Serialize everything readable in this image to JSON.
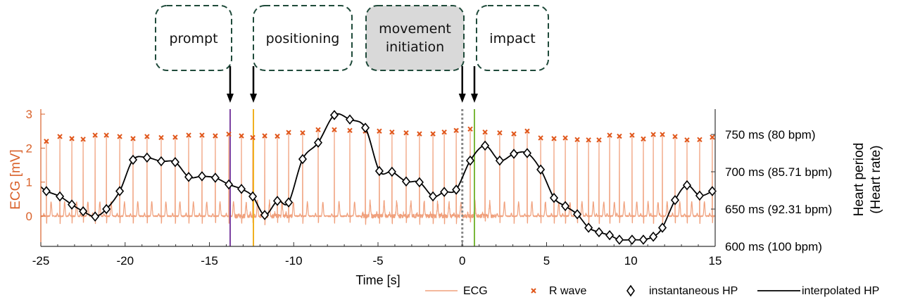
{
  "chart_data": {
    "type": "line",
    "xlabel": "Time [s]",
    "ylabel_left": "ECG [mV]",
    "ylabel_right": [
      "Heart period",
      "(Heart rate)"
    ],
    "xlim": [
      -25,
      15
    ],
    "ylim_left": [
      -0.9,
      3.2
    ],
    "ylim_right_ms": [
      600,
      784
    ],
    "x_ticks": [
      "-25",
      "-20",
      "-15",
      "-10",
      "-5",
      "0",
      "5",
      "10",
      "15"
    ],
    "x_tick_values": [
      -25,
      -20,
      -15,
      -10,
      -5,
      0,
      5,
      10,
      15
    ],
    "y_left_ticks": [
      "0",
      "1",
      "2",
      "3"
    ],
    "y_left_tick_values": [
      0,
      1,
      2,
      3
    ],
    "y_right_ticks": [
      "600 ms (100 bpm)",
      "650 ms (92.31 bpm)",
      "700 ms (85.71 bpm)",
      "750 ms (80 bpm)"
    ],
    "y_right_tick_values": [
      600,
      650,
      700,
      750
    ],
    "legend": [
      "ECG",
      "R wave",
      "instantaneous HP",
      "interpolated HP"
    ],
    "legend_position": "bottom-right",
    "colors": {
      "ecg": "#f0a07c",
      "ecg_dark": "#e0672e",
      "r_wave": "#e0561a",
      "axis_left": "#d9622b",
      "hp": "#000000",
      "prompt": "#7b3fa0",
      "positioning": "#f0b020",
      "movement": "#888888",
      "impact": "#7ab83a",
      "box_border": "#1f4a3a",
      "box_fill_active": "#d9d9d9"
    },
    "beat_times_s": [
      -24.67,
      -23.87,
      -23.16,
      -22.49,
      -21.78,
      -21.11,
      -20.32,
      -19.53,
      -18.7,
      -17.86,
      -17.03,
      -16.23,
      -15.44,
      -14.65,
      -13.85,
      -13.1,
      -12.43,
      -11.72,
      -10.97,
      -10.3,
      -9.47,
      -8.55,
      -7.59,
      -6.67,
      -5.75,
      -4.92,
      -4.17,
      -3.33,
      -2.54,
      -1.74,
      -1.07,
      -0.36,
      0.47,
      1.35,
      2.22,
      3.06,
      3.85,
      4.65,
      5.44,
      6.11,
      6.82,
      7.49,
      8.11,
      8.74,
      9.32,
      10.07,
      10.74,
      11.33,
      11.87,
      12.62,
      13.33,
      14.08,
      14.83
    ],
    "instantaneous_hp_ms": [
      674,
      667,
      656,
      647,
      640,
      650,
      674,
      716,
      719,
      714,
      713,
      693,
      694,
      692,
      683,
      677,
      667,
      642,
      661,
      659,
      717,
      739,
      776,
      770,
      759,
      701,
      700,
      687,
      686,
      667,
      673,
      676,
      715,
      735,
      715,
      724,
      725,
      703,
      665,
      654,
      643,
      625,
      619,
      615,
      609,
      609,
      609,
      613,
      625,
      662,
      682,
      668,
      674
    ],
    "r_wave_mv": [
      2.2,
      2.34,
      2.28,
      2.26,
      2.38,
      2.38,
      2.34,
      2.28,
      2.34,
      2.31,
      2.32,
      2.38,
      2.38,
      2.36,
      2.41,
      2.36,
      2.31,
      2.36,
      2.35,
      2.46,
      2.45,
      2.54,
      2.54,
      2.52,
      2.5,
      2.5,
      2.47,
      2.45,
      2.42,
      2.42,
      2.47,
      2.52,
      2.56,
      2.47,
      2.45,
      2.42,
      2.5,
      2.3,
      2.28,
      2.3,
      2.25,
      2.24,
      2.24,
      2.38,
      2.35,
      2.38,
      2.27,
      2.4,
      2.4,
      2.34,
      2.24,
      2.25,
      2.32
    ],
    "events": [
      {
        "label": "prompt",
        "time_s": -13.77,
        "active": false
      },
      {
        "label": "positioning",
        "time_s": -12.39,
        "active": false
      },
      {
        "label": "movement initiation",
        "time_s": 0,
        "active": true
      },
      {
        "label": "impact",
        "time_s": 0.72,
        "active": false
      }
    ]
  }
}
